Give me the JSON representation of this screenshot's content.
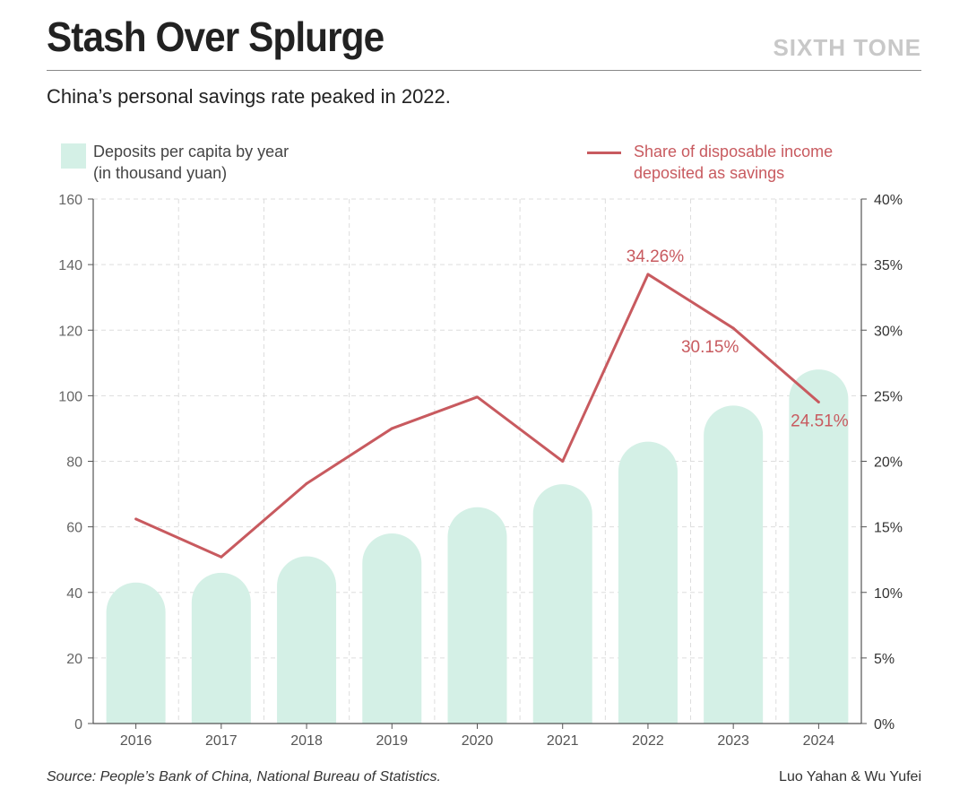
{
  "header": {
    "title": "Stash Over Splurge",
    "brand": "SIXTH TONE",
    "subtitle": "China’s personal savings rate peaked in 2022."
  },
  "legend": {
    "bars_line1": "Deposits per capita by year",
    "bars_line2": "(in thousand yuan)",
    "line_line1": "Share of disposable income",
    "line_line2": "deposited as savings"
  },
  "footer": {
    "source": "Source: People’s Bank of China, National Bureau of Statistics.",
    "credit": "Luo Yahan & Wu Yufei"
  },
  "colors": {
    "bar": "#d4f0e6",
    "line": "#c85a5f",
    "grid": "#dddddd",
    "axis": "#555555"
  },
  "chart_data": {
    "type": "bar",
    "categories": [
      "2016",
      "2017",
      "2018",
      "2019",
      "2020",
      "2021",
      "2022",
      "2023",
      "2024"
    ],
    "series": [
      {
        "name": "Deposits per capita by year (in thousand yuan)",
        "type": "bar",
        "axis": "left",
        "values": [
          43,
          46,
          51,
          58,
          66,
          73,
          86,
          97,
          108
        ]
      },
      {
        "name": "Share of disposable income deposited as savings",
        "type": "line",
        "axis": "right",
        "values": [
          15.6,
          12.7,
          18.3,
          22.5,
          24.9,
          20.0,
          34.26,
          30.15,
          24.51
        ],
        "labels": [
          "",
          "",
          "",
          "",
          "",
          "",
          "34.26%",
          "30.15%",
          "24.51%"
        ]
      }
    ],
    "left_ticks": [
      "0",
      "20",
      "40",
      "60",
      "80",
      "100",
      "120",
      "140",
      "160"
    ],
    "right_ticks": [
      "0%",
      "5%",
      "10%",
      "15%",
      "20%",
      "25%",
      "30%",
      "35%",
      "40%"
    ],
    "ylim_left": [
      0,
      160
    ],
    "ylim_right": [
      0,
      40
    ],
    "grid": true
  }
}
